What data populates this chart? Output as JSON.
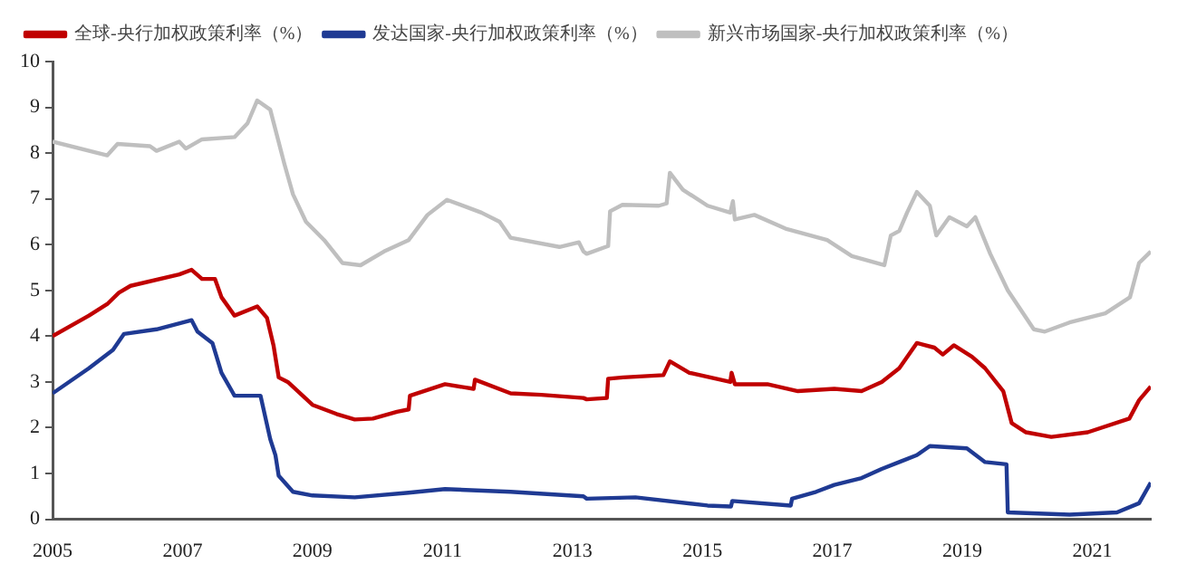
{
  "chart_data": {
    "type": "line",
    "legend": "top",
    "grid": false,
    "marker": "none",
    "line_style": "solid",
    "xlim": [
      2005,
      2021.9
    ],
    "xticks": [
      2005,
      2007,
      2009,
      2011,
      2013,
      2015,
      2017,
      2019,
      2021
    ],
    "ylim": [
      0,
      10
    ],
    "yticks": [
      0,
      1,
      2,
      3,
      4,
      5,
      6,
      7,
      8,
      9,
      10
    ],
    "series": [
      {
        "name": "全球-央行加权政策利率（%）",
        "color": "#c00000",
        "x": [
          2005,
          2005.56,
          2005.84,
          2006.02,
          2006.2,
          2006.95,
          2007.14,
          2007.3,
          2007.5,
          2007.6,
          2007.8,
          2008.15,
          2008.3,
          2008.4,
          2008.48,
          2008.62,
          2009,
          2009.37,
          2009.65,
          2009.93,
          2010.3,
          2010.48,
          2010.5,
          2011.04,
          2011.48,
          2011.5,
          2012.05,
          2012.52,
          2013.17,
          2013.22,
          2013.53,
          2013.55,
          2013.78,
          2014.4,
          2014.5,
          2014.8,
          2015.43,
          2015.45,
          2015.5,
          2016,
          2016.47,
          2017.03,
          2017.45,
          2017.76,
          2018.03,
          2018.3,
          2018.57,
          2018.7,
          2018.87,
          2019.15,
          2019.35,
          2019.63,
          2019.76,
          2019.98,
          2020.37,
          2020.93,
          2021.57,
          2021.72,
          2021.9
        ],
        "values": [
          4,
          4.45,
          4.7,
          4.95,
          5.1,
          5.35,
          5.45,
          5.25,
          5.25,
          4.85,
          4.45,
          4.65,
          4.4,
          3.8,
          3.1,
          3,
          2.5,
          2.3,
          2.18,
          2.2,
          2.35,
          2.4,
          2.7,
          2.95,
          2.85,
          3.05,
          2.75,
          2.72,
          2.65,
          2.62,
          2.65,
          3.07,
          3.1,
          3.15,
          3.45,
          3.2,
          3,
          3.2,
          2.95,
          2.95,
          2.8,
          2.85,
          2.8,
          3,
          3.3,
          3.85,
          3.75,
          3.6,
          3.8,
          3.55,
          3.3,
          2.8,
          2.1,
          1.9,
          1.8,
          1.9,
          2.2,
          2.6,
          2.9
        ]
      },
      {
        "name": "发达国家-央行加权政策利率（%）",
        "color": "#1f3a93",
        "x": [
          2005,
          2005.56,
          2005.93,
          2006.1,
          2006.6,
          2007.14,
          2007.23,
          2007.46,
          2007.6,
          2007.8,
          2008.2,
          2008.35,
          2008.43,
          2008.48,
          2008.7,
          2009,
          2009.65,
          2010.48,
          2011.04,
          2012.05,
          2013.17,
          2013.22,
          2013.97,
          2015.08,
          2015.44,
          2015.46,
          2016.36,
          2016.38,
          2016.75,
          2017.03,
          2017.45,
          2017.76,
          2018.03,
          2018.3,
          2018.5,
          2019.07,
          2019.35,
          2019.68,
          2019.7,
          2020.65,
          2021.38,
          2021.72,
          2021.9
        ],
        "values": [
          2.75,
          3.3,
          3.7,
          4.05,
          4.15,
          4.35,
          4.1,
          3.85,
          3.2,
          2.7,
          2.7,
          1.75,
          1.4,
          0.95,
          0.6,
          0.52,
          0.48,
          0.58,
          0.66,
          0.6,
          0.5,
          0.45,
          0.48,
          0.3,
          0.28,
          0.4,
          0.3,
          0.45,
          0.6,
          0.75,
          0.9,
          1.1,
          1.25,
          1.4,
          1.6,
          1.55,
          1.25,
          1.2,
          0.15,
          0.1,
          0.15,
          0.35,
          0.8
        ]
      },
      {
        "name": "新兴市场国家-央行加权政策利率（%）",
        "color": "#bfbfbf",
        "x": [
          2005,
          2005.84,
          2006,
          2006.5,
          2006.6,
          2006.95,
          2007.05,
          2007.3,
          2007.8,
          2008,
          2008.15,
          2008.35,
          2008.57,
          2008.7,
          2008.9,
          2009.18,
          2009.46,
          2009.74,
          2010.1,
          2010.48,
          2010.77,
          2011.07,
          2011.6,
          2011.88,
          2012.05,
          2012.8,
          2013.1,
          2013.17,
          2013.22,
          2013.55,
          2013.58,
          2013.77,
          2014.33,
          2014.45,
          2014.5,
          2014.7,
          2015.08,
          2015.43,
          2015.47,
          2015.5,
          2015.8,
          2016.28,
          2016.92,
          2017.3,
          2017.8,
          2017.9,
          2018.03,
          2018.15,
          2018.3,
          2018.5,
          2018.6,
          2018.8,
          2019.07,
          2019.2,
          2019.43,
          2019.7,
          2020.1,
          2020.27,
          2020.65,
          2021.2,
          2021.58,
          2021.72,
          2021.9
        ],
        "values": [
          8.25,
          7.95,
          8.2,
          8.15,
          8.05,
          8.25,
          8.1,
          8.3,
          8.35,
          8.65,
          9.15,
          8.95,
          7.75,
          7.1,
          6.5,
          6.1,
          5.6,
          5.55,
          5.85,
          6.1,
          6.65,
          6.98,
          6.7,
          6.5,
          6.15,
          5.95,
          6.05,
          5.85,
          5.8,
          5.97,
          6.73,
          6.87,
          6.85,
          6.9,
          7.57,
          7.2,
          6.85,
          6.7,
          6.95,
          6.55,
          6.65,
          6.35,
          6.1,
          5.75,
          5.55,
          6.2,
          6.3,
          6.7,
          7.15,
          6.85,
          6.2,
          6.6,
          6.4,
          6.6,
          5.8,
          5,
          4.15,
          4.1,
          4.3,
          4.5,
          4.85,
          5.6,
          5.85
        ]
      }
    ]
  }
}
